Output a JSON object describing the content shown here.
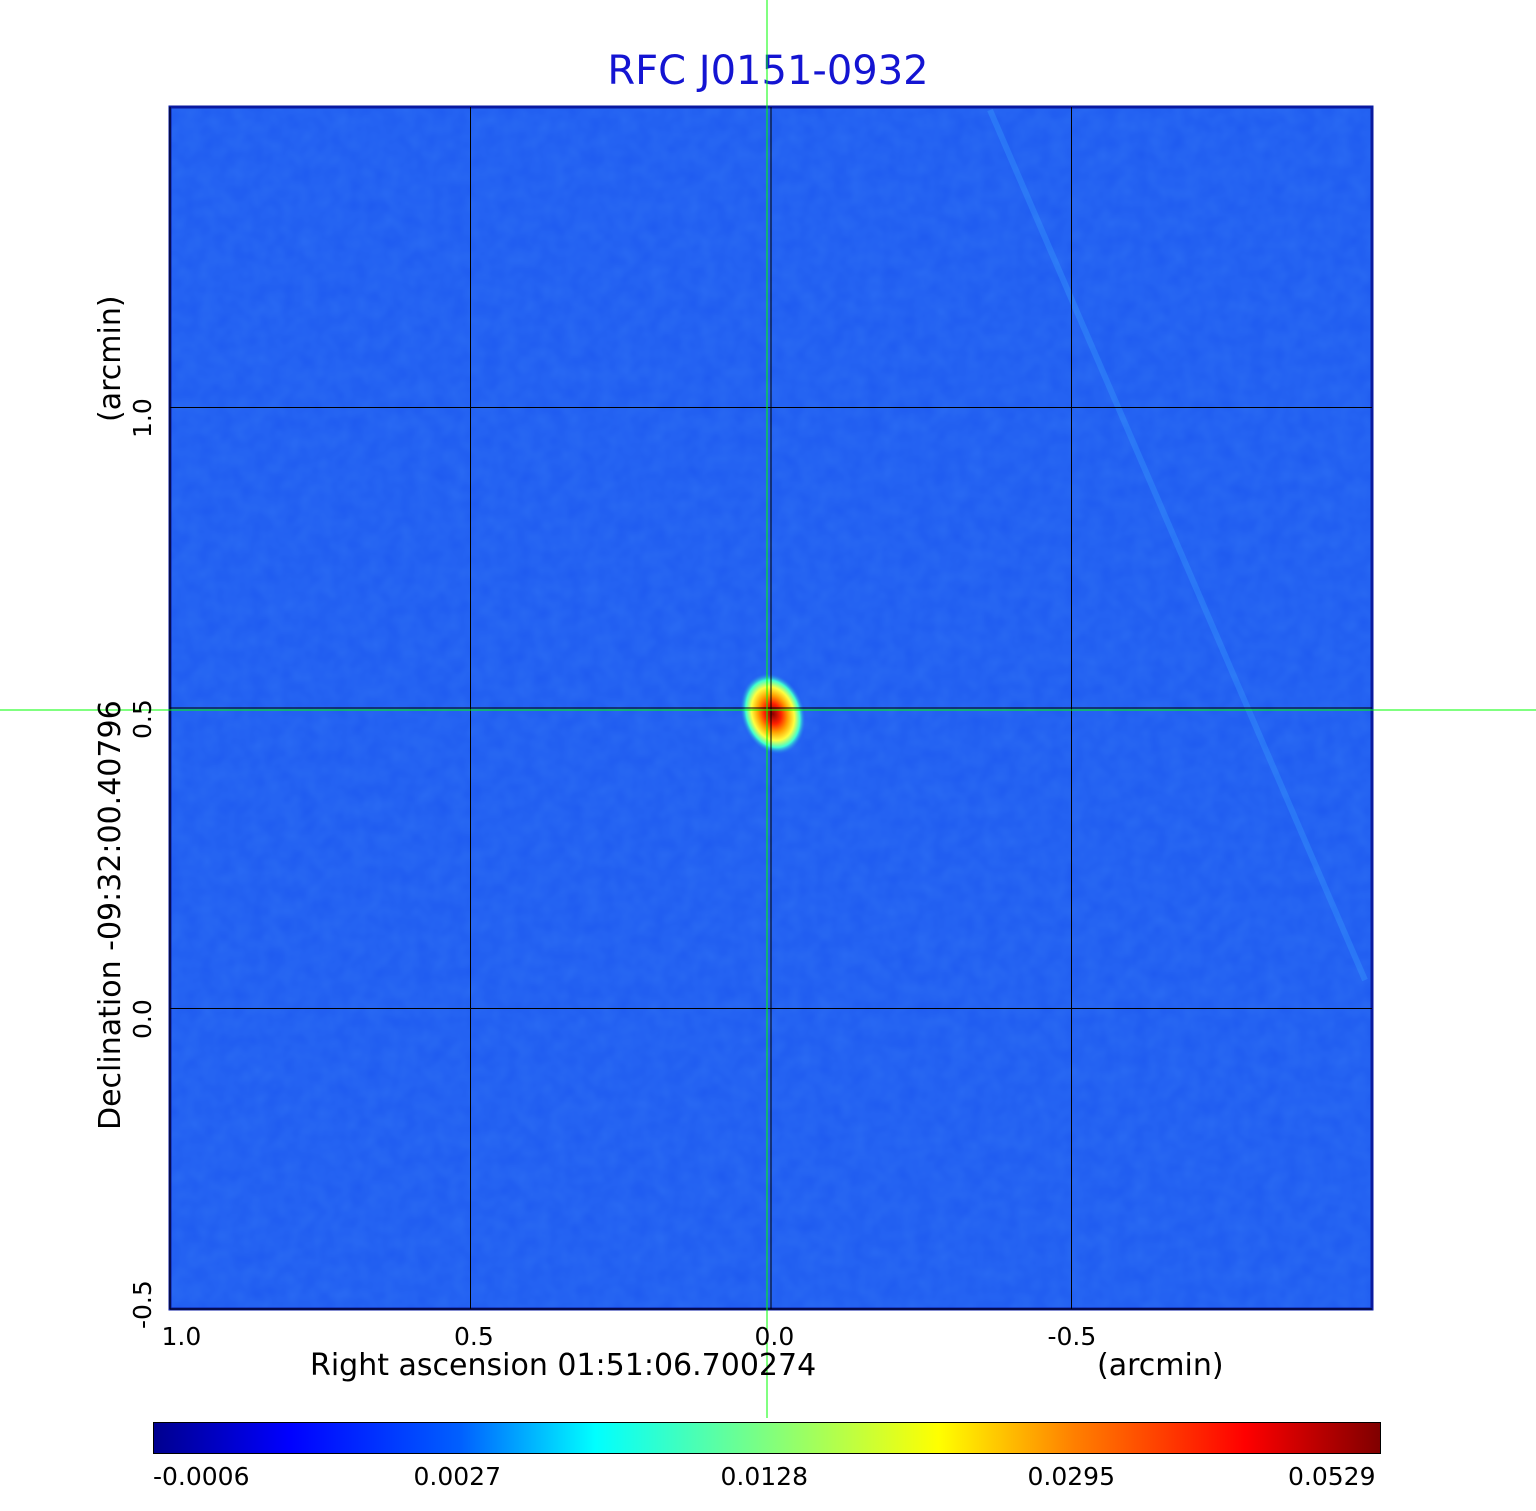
{
  "chart_data": {
    "type": "heatmap",
    "title": "RFC J0151-0932",
    "xlabel": "Right ascension  01:51:06.700274",
    "xunit": "(arcmin)",
    "ylabel": "Declination  -09:32:00.40796",
    "yunit": "(arcmin)",
    "x_ticks": [
      "1.0",
      "0.5",
      "0.0",
      "-0.5"
    ],
    "y_ticks": [
      "1.0",
      "0.5",
      "0.0",
      "-0.5"
    ],
    "x_range": [
      1.0,
      -1.0
    ],
    "y_range": [
      -0.5,
      1.5
    ],
    "grid": true,
    "crosshair": {
      "x": 0.0,
      "y": 0.5
    },
    "source_peak": {
      "x": 0.0,
      "y": 0.5,
      "value": 0.0529
    },
    "colorbar": {
      "colormap": "jet",
      "ticks": [
        "-0.0006",
        "0.0027",
        "0.0128",
        "0.0295",
        "0.0529"
      ]
    },
    "colors": {
      "title": "#1414d2",
      "crosshair": "#00ff00",
      "grid": "#000000",
      "background_pixel": "#1e5af0"
    }
  }
}
